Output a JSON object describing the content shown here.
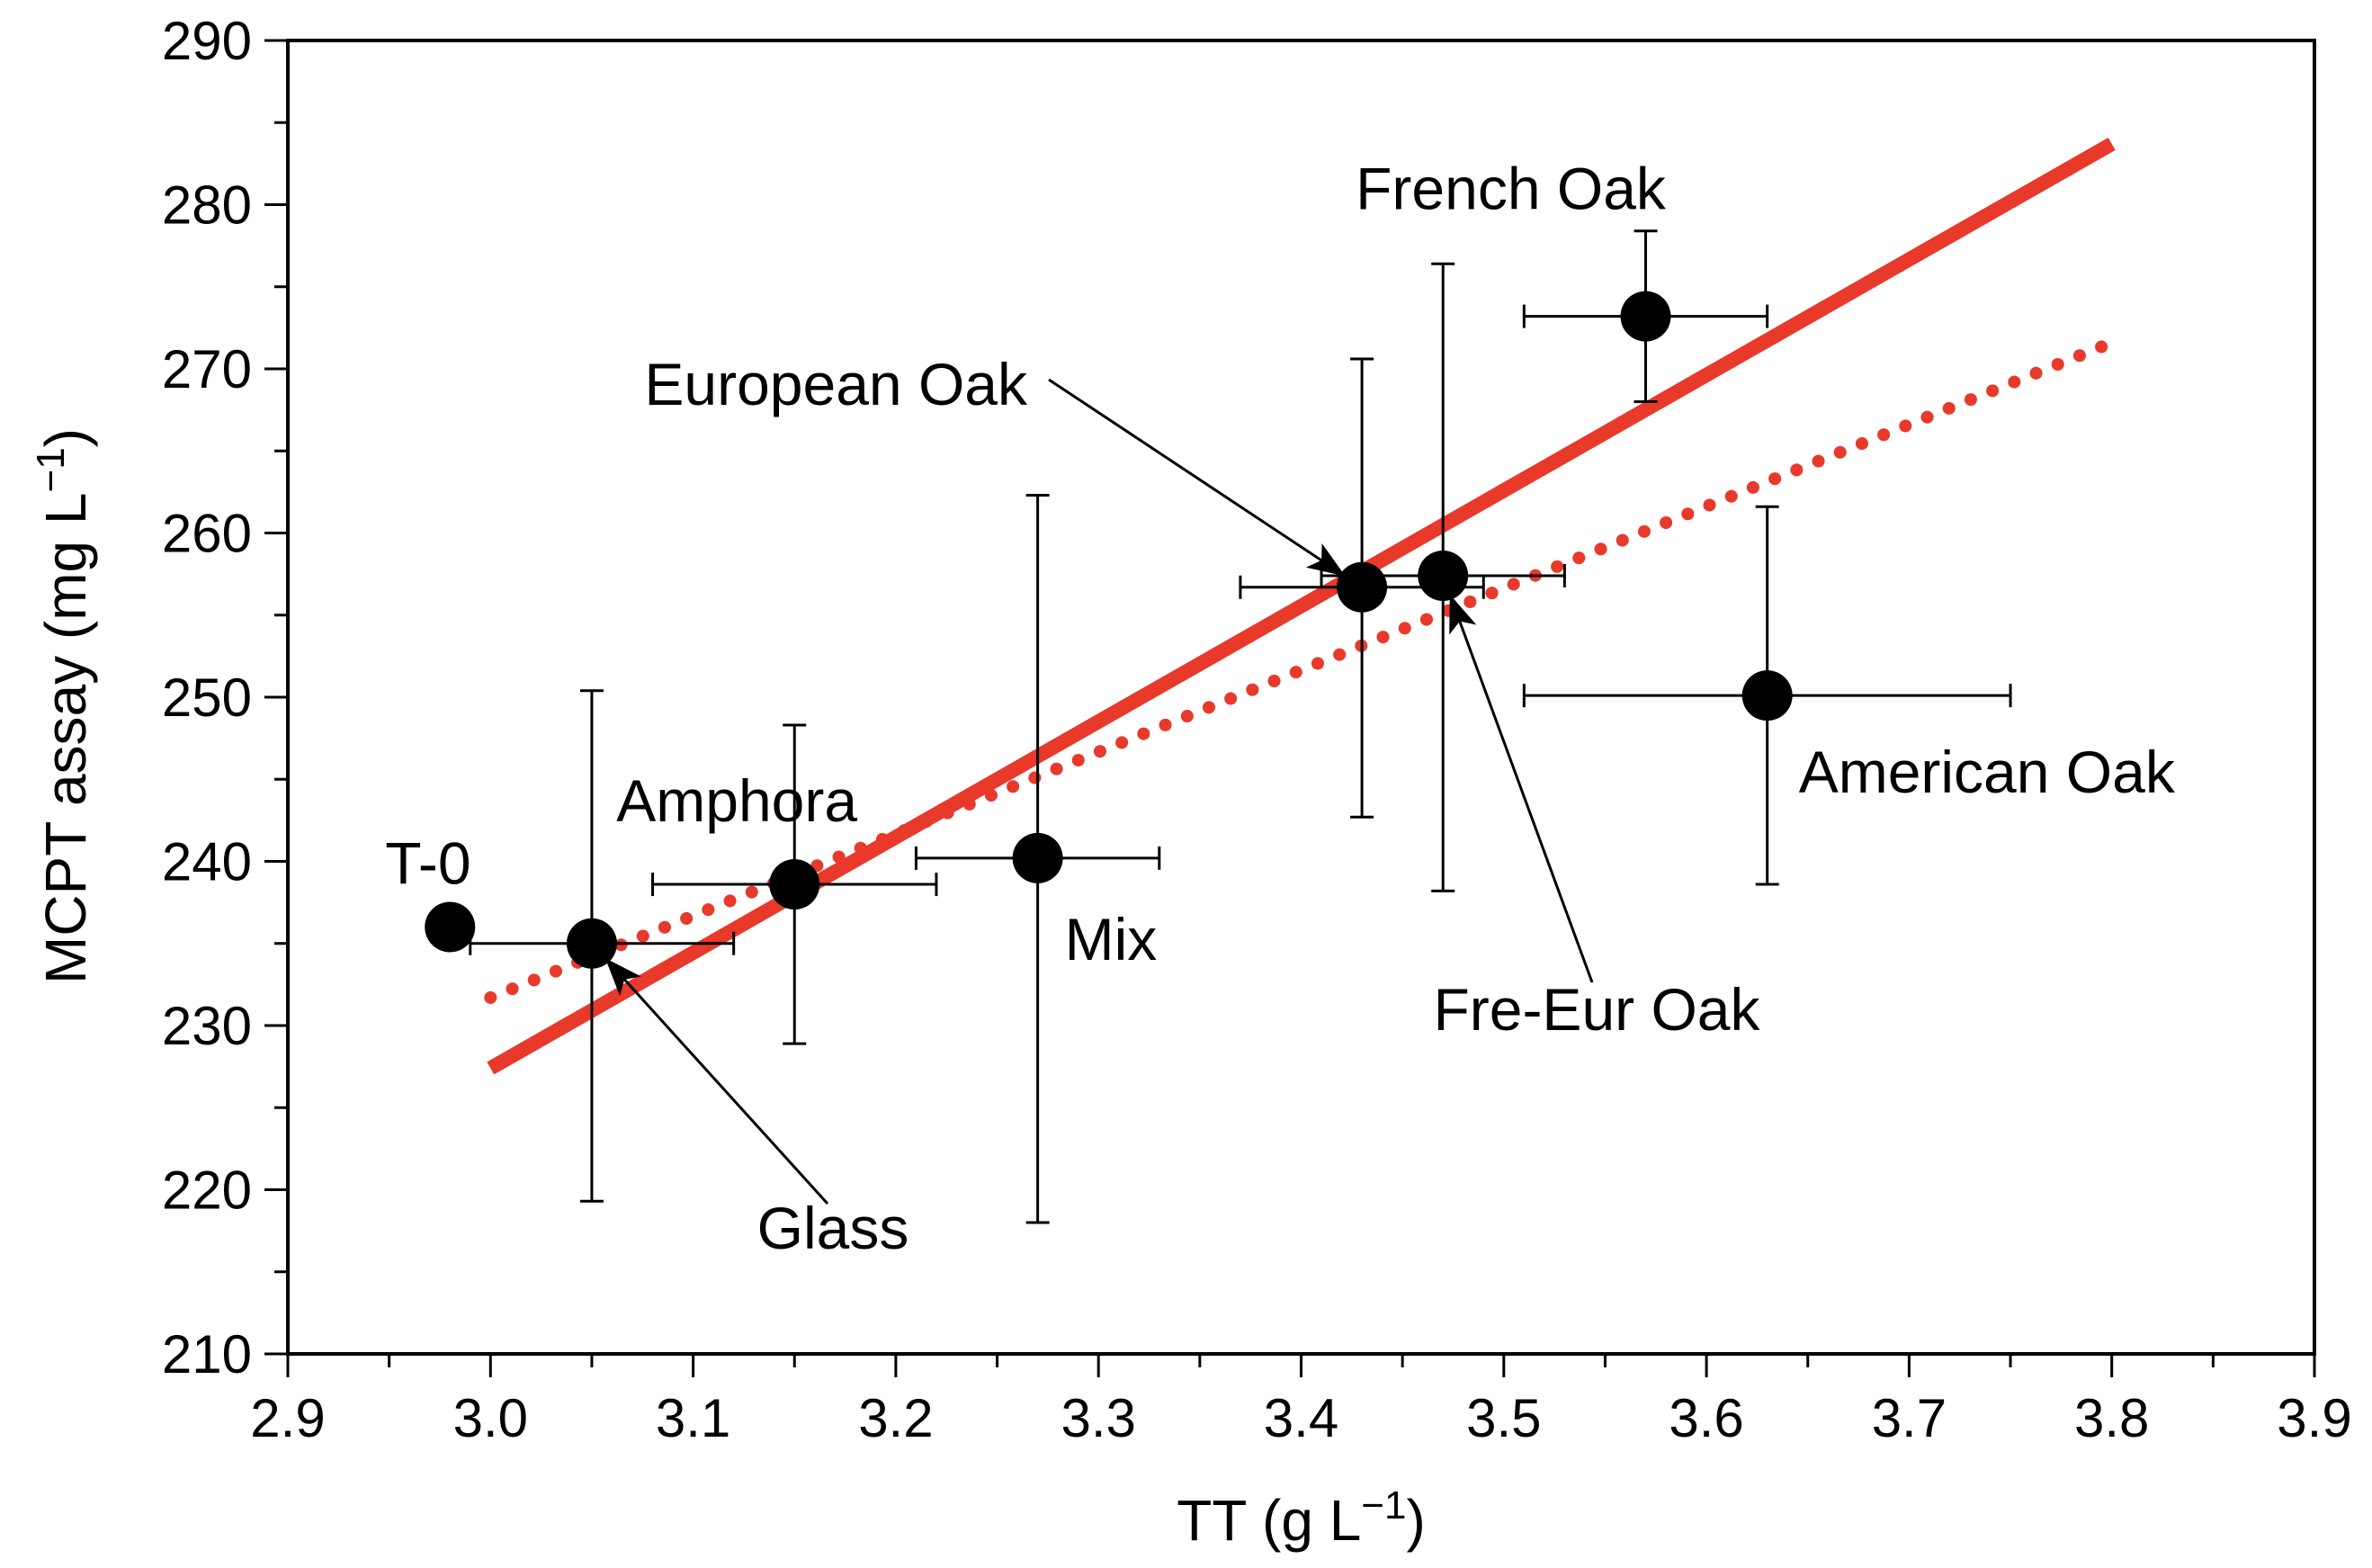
{
  "chart_data": {
    "type": "scatter",
    "title": "",
    "xlabel_base": "TT (g L",
    "xlabel_sup": "−1",
    "xlabel_end": ")",
    "ylabel_base": "MCPT assay (mg L",
    "ylabel_sup": "−1",
    "ylabel_end": ")",
    "xlim": [
      2.9,
      3.9
    ],
    "ylim": [
      210,
      290
    ],
    "xticks": [
      "2.9",
      "3.0",
      "3.1",
      "3.2",
      "3.3",
      "3.4",
      "3.5",
      "3.6",
      "3.7",
      "3.8",
      "3.9"
    ],
    "yticks": [
      "210",
      "220",
      "230",
      "240",
      "250",
      "260",
      "270",
      "280",
      "290"
    ],
    "grid": false,
    "points": [
      {
        "label": "T-0",
        "x": 2.98,
        "y": 236.0,
        "xerr": null,
        "yerr": null
      },
      {
        "label": "Glass",
        "x": 3.05,
        "y": 235.0,
        "xerr": [
          2.99,
          3.12
        ],
        "yerr": [
          219.3,
          250.4
        ]
      },
      {
        "label": "Amphora",
        "x": 3.15,
        "y": 238.6,
        "xerr": [
          3.08,
          3.22
        ],
        "yerr": [
          228.9,
          248.3
        ]
      },
      {
        "label": "Mix",
        "x": 3.27,
        "y": 240.2,
        "xerr": [
          3.21,
          3.33
        ],
        "yerr": [
          218.0,
          262.3
        ]
      },
      {
        "label": "European Oak",
        "x": 3.43,
        "y": 256.7,
        "xerr": [
          3.37,
          3.49
        ],
        "yerr": [
          242.7,
          270.6
        ]
      },
      {
        "label": "Fre-Eur Oak",
        "x": 3.47,
        "y": 257.4,
        "xerr": [
          3.41,
          3.53
        ],
        "yerr": [
          238.2,
          276.4
        ]
      },
      {
        "label": "French Oak",
        "x": 3.57,
        "y": 273.2,
        "xerr": [
          3.51,
          3.63
        ],
        "yerr": [
          268.0,
          278.4
        ]
      },
      {
        "label": "American Oak",
        "x": 3.63,
        "y": 250.1,
        "xerr": [
          3.51,
          3.75
        ],
        "yerr": [
          238.6,
          261.6
        ]
      }
    ],
    "fit_lines": [
      {
        "style": "solid",
        "color": "#e8392b",
        "x": [
          3.0,
          3.8
        ],
        "y": [
          227.4,
          283.7
        ]
      },
      {
        "style": "dotted",
        "color": "#e8392b",
        "x": [
          3.0,
          3.8
        ],
        "y": [
          231.7,
          271.6
        ]
      }
    ],
    "annotations": [
      {
        "text": "T-0",
        "target": "T-0"
      },
      {
        "text": "Glass",
        "target": "Glass",
        "arrow": true
      },
      {
        "text": "Amphora",
        "target": "Amphora"
      },
      {
        "text": "Mix",
        "target": "Mix"
      },
      {
        "text": "European Oak",
        "target": "European Oak",
        "arrow": true
      },
      {
        "text": "Fre-Eur Oak",
        "target": "Fre-Eur Oak",
        "arrow": true
      },
      {
        "text": "French Oak",
        "target": "French Oak"
      },
      {
        "text": "American Oak",
        "target": "American Oak"
      }
    ],
    "colors": {
      "points": "#000000",
      "fit": "#e8392b",
      "axes": "#000000"
    }
  }
}
